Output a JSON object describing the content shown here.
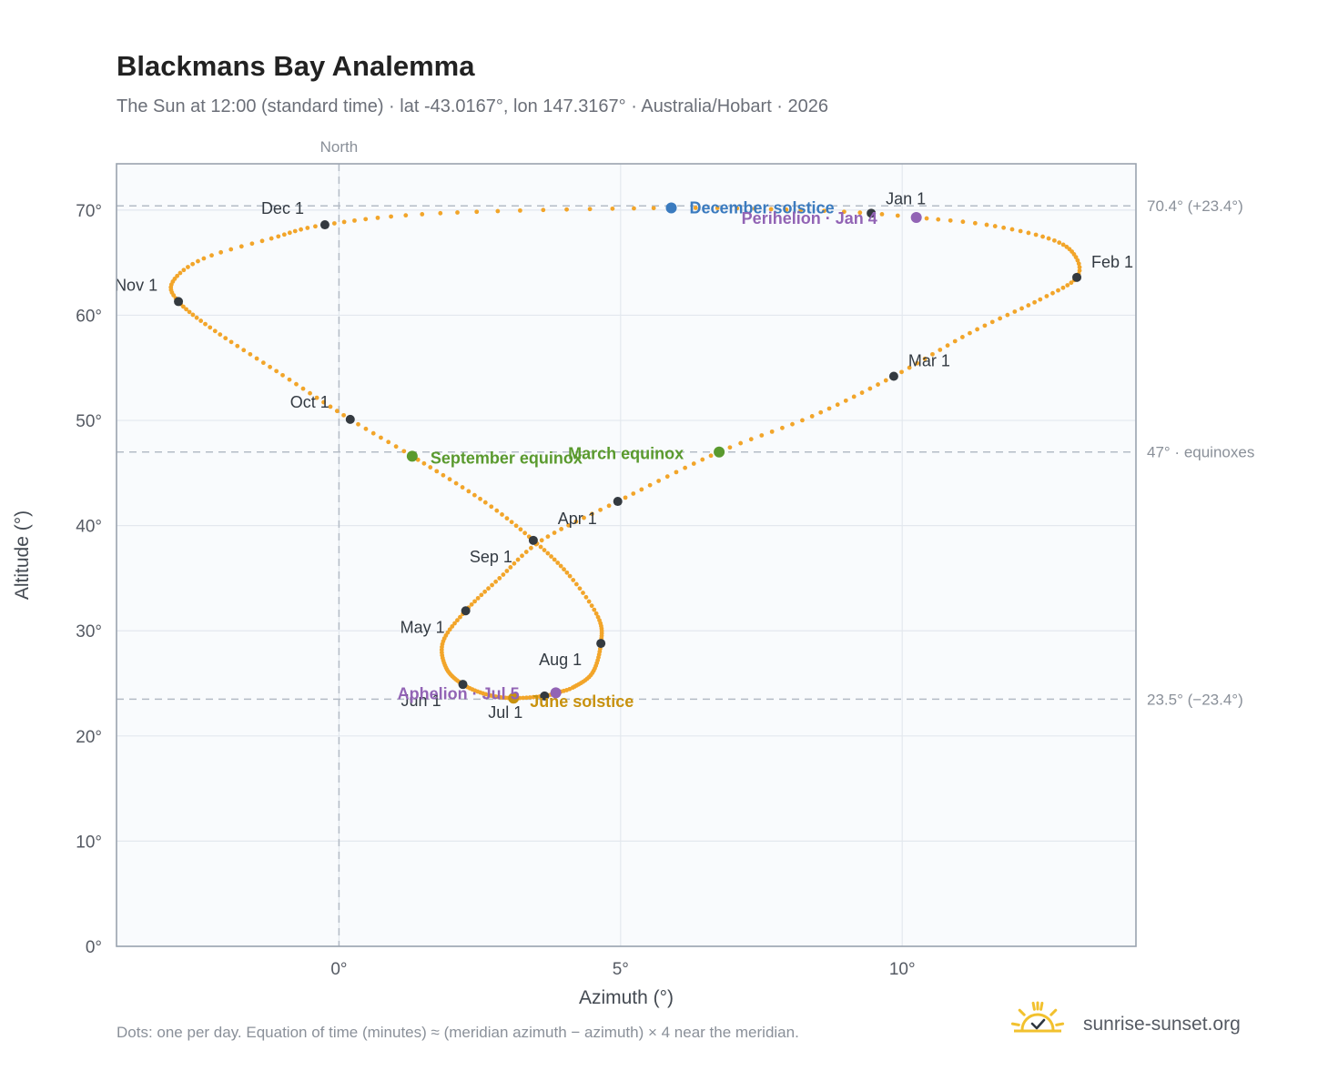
{
  "title": "Blackmans Bay Analemma",
  "subtitle": "The Sun at 12:00 (standard time) · lat -43.0167°, lon 147.3167° · Australia/Hobart · 2026",
  "footnote": "Dots: one per day. Equation of time (minutes) ≈ (meridian azimuth − azimuth) × 4 near the meridian.",
  "brand": "sunrise-sunset.org",
  "north_label": "North",
  "colors": {
    "curve": "#f2a52a",
    "month_dot": "#343a40",
    "solstice_dec": "#3b7bbf",
    "solstice_jun": "#c8920f",
    "equinox": "#5a9a2e",
    "apsis": "#9264b5",
    "plot_bg": "#f9fbfd",
    "grid": "#e3e8ee",
    "frame": "#9aa3af",
    "reference_line": "#b4bcc6",
    "logo": "#f2c12e"
  },
  "chart_data": {
    "type": "scatter",
    "title": "Blackmans Bay Analemma",
    "xlabel": "Azimuth (°)",
    "ylabel": "Altitude (°)",
    "xlim": [
      -3.95,
      14.15
    ],
    "ylim": [
      0,
      74.4
    ],
    "x_ticks": [
      0,
      5,
      10
    ],
    "y_ticks": [
      0,
      10,
      20,
      30,
      40,
      50,
      60,
      70
    ],
    "x_tick_labels": [
      "0°",
      "5°",
      "10°"
    ],
    "y_tick_labels": [
      "0°",
      "10°",
      "20°",
      "30°",
      "40°",
      "50°",
      "60°",
      "70°"
    ],
    "grid": true,
    "north_azimuth": 0,
    "reference_lines": [
      {
        "altitude": 70.4,
        "label": "70.4° (+23.4°)"
      },
      {
        "altitude": 47.0,
        "label": "47° · equinoxes"
      },
      {
        "altitude": 23.5,
        "label": "23.5° (−23.4°)"
      }
    ],
    "month_markers": [
      {
        "label": "Jan 1",
        "azimuth": 9.45,
        "altitude": 69.7
      },
      {
        "label": "Feb 1",
        "azimuth": 13.1,
        "altitude": 63.6
      },
      {
        "label": "Mar 1",
        "azimuth": 9.85,
        "altitude": 54.2
      },
      {
        "label": "Apr 1",
        "azimuth": 4.95,
        "altitude": 42.3
      },
      {
        "label": "May 1",
        "azimuth": 2.25,
        "altitude": 31.9
      },
      {
        "label": "Jun 1",
        "azimuth": 2.2,
        "altitude": 24.9
      },
      {
        "label": "Jul 1",
        "azimuth": 3.65,
        "altitude": 23.8
      },
      {
        "label": "Aug 1",
        "azimuth": 4.65,
        "altitude": 28.8
      },
      {
        "label": "Sep 1",
        "azimuth": 3.45,
        "altitude": 38.6
      },
      {
        "label": "Oct 1",
        "azimuth": 0.2,
        "altitude": 50.1
      },
      {
        "label": "Nov 1",
        "azimuth": -2.85,
        "altitude": 61.3
      },
      {
        "label": "Dec 1",
        "azimuth": -0.25,
        "altitude": 68.6
      }
    ],
    "events": [
      {
        "label": "December solstice",
        "kind": "solstice_dec",
        "azimuth": 5.9,
        "altitude": 70.2
      },
      {
        "label": "Perihelion · Jan 4",
        "kind": "apsis",
        "azimuth": 10.25,
        "altitude": 69.3
      },
      {
        "label": "March equinox",
        "kind": "equinox",
        "azimuth": 6.75,
        "altitude": 47.0
      },
      {
        "label": "September equinox",
        "kind": "equinox",
        "azimuth": 1.3,
        "altitude": 46.6
      },
      {
        "label": "June solstice",
        "kind": "solstice_jun",
        "azimuth": 3.1,
        "altitude": 23.6
      },
      {
        "label": "Aphelion · Jul 5",
        "kind": "apsis",
        "azimuth": 3.85,
        "altitude": 24.1
      }
    ],
    "daily_path": [
      {
        "day": 1,
        "azimuth": 9.45,
        "altitude": 69.7
      },
      {
        "day": 4,
        "azimuth": 10.25,
        "altitude": 69.3
      },
      {
        "day": 10,
        "azimuth": 11.5,
        "altitude": 68.6
      },
      {
        "day": 18,
        "azimuth": 12.6,
        "altitude": 67.3
      },
      {
        "day": 25,
        "azimuth": 13.05,
        "altitude": 65.8
      },
      {
        "day": 32,
        "azimuth": 13.1,
        "altitude": 63.6
      },
      {
        "day": 40,
        "azimuth": 12.45,
        "altitude": 61.5
      },
      {
        "day": 50,
        "azimuth": 11.2,
        "altitude": 58.3
      },
      {
        "day": 60,
        "azimuth": 9.85,
        "altitude": 54.2
      },
      {
        "day": 70,
        "azimuth": 8.4,
        "altitude": 50.4
      },
      {
        "day": 79,
        "azimuth": 6.75,
        "altitude": 47.0
      },
      {
        "day": 91,
        "azimuth": 4.95,
        "altitude": 42.3
      },
      {
        "day": 101,
        "azimuth": 3.6,
        "altitude": 38.6
      },
      {
        "day": 111,
        "azimuth": 2.85,
        "altitude": 35.0
      },
      {
        "day": 121,
        "azimuth": 2.25,
        "altitude": 31.9
      },
      {
        "day": 131,
        "azimuth": 1.85,
        "altitude": 29.0
      },
      {
        "day": 141,
        "azimuth": 1.9,
        "altitude": 26.5
      },
      {
        "day": 152,
        "azimuth": 2.2,
        "altitude": 24.9
      },
      {
        "day": 162,
        "azimuth": 2.65,
        "altitude": 23.9
      },
      {
        "day": 172,
        "azimuth": 3.1,
        "altitude": 23.6
      },
      {
        "day": 182,
        "azimuth": 3.65,
        "altitude": 23.8
      },
      {
        "day": 186,
        "azimuth": 3.85,
        "altitude": 24.1
      },
      {
        "day": 192,
        "azimuth": 4.15,
        "altitude": 24.6
      },
      {
        "day": 202,
        "azimuth": 4.5,
        "altitude": 26.0
      },
      {
        "day": 213,
        "azimuth": 4.65,
        "altitude": 28.8
      },
      {
        "day": 223,
        "azimuth": 4.6,
        "altitude": 31.3
      },
      {
        "day": 233,
        "azimuth": 4.1,
        "altitude": 35.2
      },
      {
        "day": 244,
        "azimuth": 3.45,
        "altitude": 38.6
      },
      {
        "day": 254,
        "azimuth": 2.6,
        "altitude": 42.2
      },
      {
        "day": 266,
        "azimuth": 1.3,
        "altitude": 46.6
      },
      {
        "day": 274,
        "azimuth": 0.2,
        "altitude": 50.1
      },
      {
        "day": 284,
        "azimuth": -1.0,
        "altitude": 54.3
      },
      {
        "day": 295,
        "azimuth": -2.2,
        "altitude": 58.5
      },
      {
        "day": 305,
        "azimuth": -2.85,
        "altitude": 61.3
      },
      {
        "day": 312,
        "azimuth": -2.95,
        "altitude": 63.2
      },
      {
        "day": 320,
        "azimuth": -2.4,
        "altitude": 65.4
      },
      {
        "day": 327,
        "azimuth": -1.2,
        "altitude": 67.3
      },
      {
        "day": 335,
        "azimuth": -0.25,
        "altitude": 68.6
      },
      {
        "day": 344,
        "azimuth": 1.8,
        "altitude": 69.7
      },
      {
        "day": 355,
        "azimuth": 5.9,
        "altitude": 70.2
      },
      {
        "day": 362,
        "azimuth": 8.2,
        "altitude": 70.0
      },
      {
        "day": 366,
        "azimuth": 9.45,
        "altitude": 69.7
      }
    ]
  }
}
